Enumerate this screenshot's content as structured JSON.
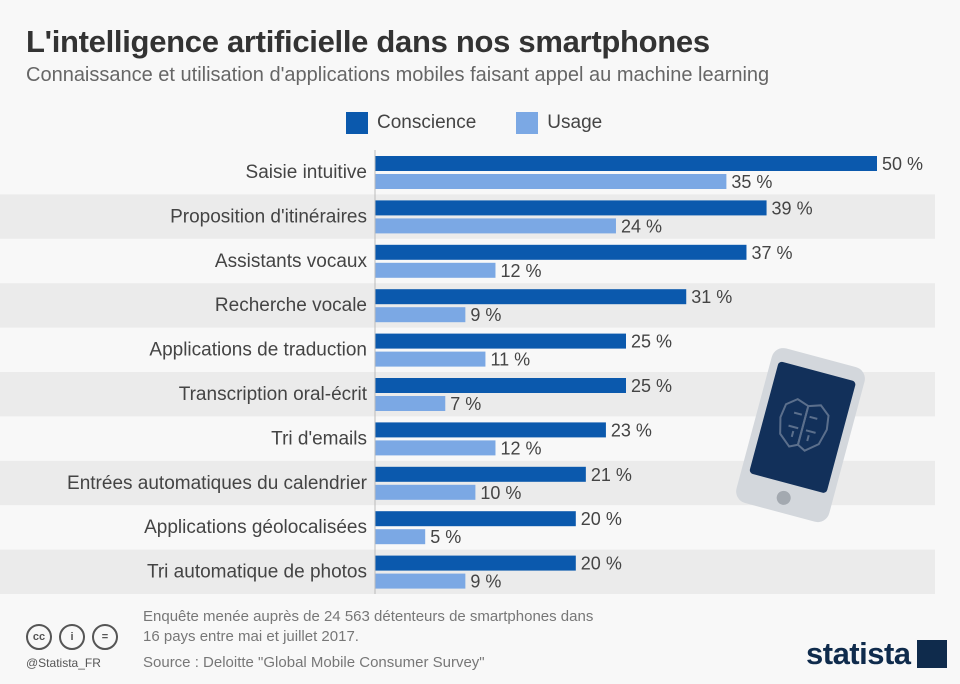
{
  "header": {
    "title": "L'intelligence artificielle dans nos smartphones",
    "subtitle": "Connaissance et utilisation d'applications mobiles faisant appel au machine learning"
  },
  "colors": {
    "conscience": "#0b59ad",
    "usage": "#7ba8e4",
    "stripe": "#ebebeb",
    "phone_body": "#d3d7dc",
    "phone_screen": "#12305a"
  },
  "chart_data": {
    "type": "bar",
    "orientation": "horizontal",
    "unit": "%",
    "categories": [
      "Saisie intuitive",
      "Proposition d'itinéraires",
      "Assistants vocaux",
      "Recherche vocale",
      "Applications de traduction",
      "Transcription oral-écrit",
      "Tri d'emails",
      "Entrées automatiques du calendrier",
      "Applications géolocalisées",
      "Tri automatique de photos"
    ],
    "series": [
      {
        "name": "Conscience",
        "values": [
          50,
          39,
          37,
          31,
          25,
          25,
          23,
          21,
          20,
          20
        ]
      },
      {
        "name": "Usage",
        "values": [
          35,
          24,
          12,
          9,
          11,
          7,
          12,
          10,
          5,
          9
        ]
      }
    ],
    "xlim": [
      0,
      50
    ],
    "legend": "top",
    "grid": false
  },
  "footer": {
    "note_line1": "Enquête menée auprès de 24 563 détenteurs de smartphones dans",
    "note_line2": "16 pays entre mai et juillet 2017.",
    "source": "Source : Deloitte \"Global Mobile Consumer Survey\"",
    "handle": "@Statista_FR",
    "logo": "statista",
    "icons": [
      "cc-icon",
      "by-icon",
      "nd-icon"
    ]
  }
}
